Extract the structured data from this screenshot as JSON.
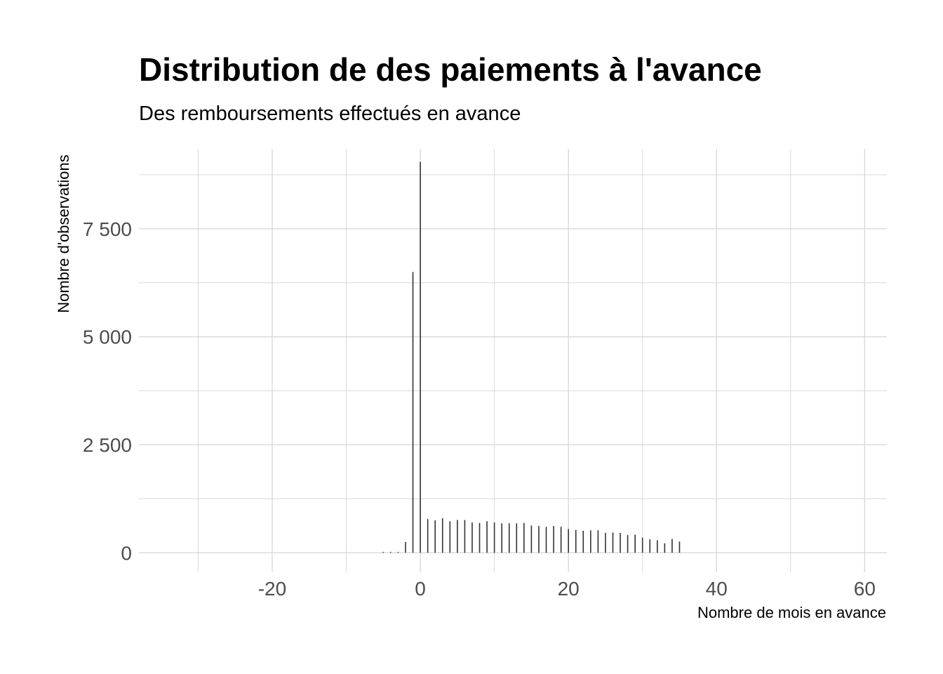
{
  "chart_data": {
    "type": "bar",
    "title": "Distribution de des paiements à l'avance",
    "subtitle": "Des remboursements effectués en avance",
    "xlabel": "Nombre de mois en avance",
    "ylabel": "Nombre d'observations",
    "xlim": [
      -38,
      63
    ],
    "ylim": [
      -450,
      9350
    ],
    "x_ticks": [
      {
        "value": -20,
        "label": "-20"
      },
      {
        "value": 0,
        "label": "0"
      },
      {
        "value": 20,
        "label": "20"
      },
      {
        "value": 40,
        "label": "40"
      },
      {
        "value": 60,
        "label": "60"
      }
    ],
    "x_minor_grid": [
      -30,
      -10,
      10,
      30,
      50
    ],
    "y_ticks": [
      {
        "value": 0,
        "label": "0"
      },
      {
        "value": 2500,
        "label": "2 500"
      },
      {
        "value": 5000,
        "label": "5 000"
      },
      {
        "value": 7500,
        "label": "7 500"
      }
    ],
    "y_minor_grid": [
      1250,
      3750,
      6250,
      8750
    ],
    "grid": true,
    "bar_color": "#333333",
    "grid_color": "#d9d9d9",
    "x": [
      -5,
      -4,
      -3,
      -2,
      -1,
      0,
      1,
      2,
      3,
      4,
      5,
      6,
      7,
      8,
      9,
      10,
      11,
      12,
      13,
      14,
      15,
      16,
      17,
      18,
      19,
      20,
      21,
      22,
      23,
      24,
      25,
      26,
      27,
      28,
      29,
      30,
      31,
      32,
      33,
      34,
      35
    ],
    "values": [
      20,
      20,
      20,
      250,
      6500,
      9050,
      780,
      750,
      800,
      730,
      760,
      760,
      700,
      690,
      730,
      700,
      680,
      680,
      680,
      690,
      630,
      620,
      600,
      620,
      600,
      550,
      530,
      510,
      520,
      520,
      460,
      470,
      460,
      410,
      420,
      350,
      310,
      290,
      220,
      320,
      260
    ]
  }
}
